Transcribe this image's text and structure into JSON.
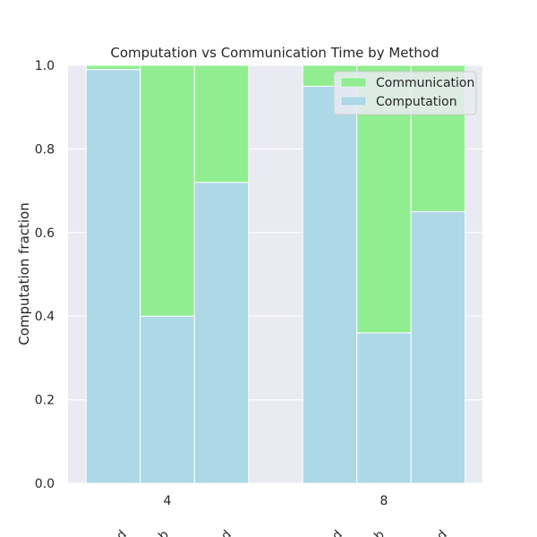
{
  "chart_data": {
    "type": "bar",
    "stacked": true,
    "title": "Computation vs Communication Time by Method",
    "xlabel": "",
    "ylabel": "Computation fraction",
    "ylim": [
      0,
      1
    ],
    "yticks": [
      "0.0",
      "0.2",
      "0.4",
      "0.6",
      "0.8",
      "1.0"
    ],
    "groups": [
      "4",
      "8"
    ],
    "method_tick_labels": [
      "d",
      "b",
      "d",
      "d",
      "b",
      "d"
    ],
    "series": [
      {
        "name": "Computation",
        "color": "#add8e6",
        "values": [
          [
            0.99,
            0.4,
            0.72
          ],
          [
            0.95,
            0.36,
            0.65
          ]
        ]
      },
      {
        "name": "Communication",
        "color": "#90ee90",
        "values": [
          [
            0.01,
            0.6,
            0.28
          ],
          [
            0.05,
            0.64,
            0.35
          ]
        ]
      }
    ],
    "legend": [
      "Communication",
      "Computation"
    ],
    "legend_position": "top-right",
    "grid": true,
    "background": "#eaeaf2"
  }
}
